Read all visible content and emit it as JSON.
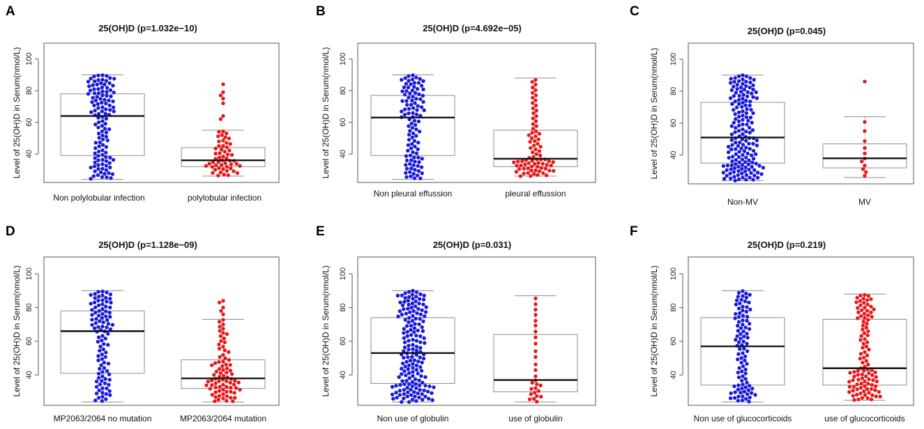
{
  "figure": {
    "ylabel": "Level of 25(OH)D in Serum(nmol/L)",
    "y_ticks": [
      40,
      60,
      80,
      100
    ]
  },
  "colors": {
    "group1": "#1a1adb",
    "group2": "#e81818",
    "box": "#8c8c8c",
    "median": "#111111",
    "axis": "#555555"
  },
  "chart_data": [
    {
      "type": "box-swarm",
      "panel_label": "A",
      "title": "25(OH)D (p=1.032e−10)",
      "ylabel": "Level of 25(OH)D in Serum(nmol/L)",
      "ylim": [
        22,
        110
      ],
      "categories": [
        "Non polylobular infection",
        "polylobular infection"
      ],
      "series": [
        {
          "name": "Non polylobular infection",
          "color": "#1a1adb",
          "n": 120,
          "box": {
            "whisker_low": 24,
            "q1": 39,
            "median": 64,
            "q3": 78,
            "whisker_high": 90
          }
        },
        {
          "name": "polylobular infection",
          "color": "#e81818",
          "n": 60,
          "box": {
            "whisker_low": 26,
            "q1": 32,
            "median": 36,
            "q3": 44,
            "whisker_high": 55
          },
          "outliers": [
            62,
            64,
            72,
            75,
            77,
            79,
            84
          ]
        }
      ]
    },
    {
      "type": "box-swarm",
      "panel_label": "B",
      "title": "25(OH)D (p=4.692e−05)",
      "ylabel": "Level of 25(OH)D in Serum(nmol/L)",
      "ylim": [
        22,
        110
      ],
      "categories": [
        "Non pleural effussion",
        "pleural  effussion"
      ],
      "series": [
        {
          "name": "Non pleural effussion",
          "color": "#1a1adb",
          "n": 105,
          "box": {
            "whisker_low": 24,
            "q1": 39,
            "median": 63,
            "q3": 77,
            "whisker_high": 90
          }
        },
        {
          "name": "pleural  effussion",
          "color": "#e81818",
          "n": 80,
          "box": {
            "whisker_low": 26,
            "q1": 32,
            "median": 37,
            "q3": 55,
            "whisker_high": 88
          }
        }
      ]
    },
    {
      "type": "box-swarm",
      "panel_label": "C",
      "title": "25(OH)D (p=0.045)",
      "ylabel": "Level of 25(OH)D in Serum(nmol/L)",
      "ylim": [
        22,
        110
      ],
      "categories": [
        "Non-MV",
        "MV"
      ],
      "series": [
        {
          "name": "Non-MV",
          "color": "#1a1adb",
          "n": 165,
          "box": {
            "whisker_low": 24,
            "q1": 35,
            "median": 51,
            "q3": 73,
            "whisker_high": 90
          }
        },
        {
          "name": "MV",
          "color": "#e81818",
          "n": 12,
          "box": {
            "whisker_low": 26,
            "q1": 32,
            "median": 38,
            "q3": 47,
            "whisker_high": 64
          },
          "outliers": [
            86
          ]
        }
      ]
    },
    {
      "type": "box-swarm",
      "panel_label": "D",
      "title": "25(OH)D (p=1.128e−09)",
      "ylabel": "Level of 25(OH)D in Serum(nmol/L)",
      "ylim": [
        22,
        110
      ],
      "categories": [
        "MP2063/2064 no mutation",
        "MP2063/2064 mutation"
      ],
      "series": [
        {
          "name": "MP2063/2064 no mutation",
          "color": "#1a1adb",
          "n": 100,
          "box": {
            "whisker_low": 24,
            "q1": 41,
            "median": 66,
            "q3": 78,
            "whisker_high": 90
          }
        },
        {
          "name": "MP2063/2064 mutation",
          "color": "#e81818",
          "n": 85,
          "box": {
            "whisker_low": 24,
            "q1": 32,
            "median": 38,
            "q3": 49,
            "whisker_high": 73
          },
          "outliers": [
            76,
            78,
            80,
            83,
            84
          ]
        }
      ]
    },
    {
      "type": "box-swarm",
      "panel_label": "E",
      "title": "25(OH)D (p=0.031)",
      "ylabel": "Level of 25(OH)D in Serum(nmol/L)",
      "ylim": [
        22,
        110
      ],
      "categories": [
        "Non use of globulin",
        "use of globulin"
      ],
      "series": [
        {
          "name": "Non use of globulin",
          "color": "#1a1adb",
          "n": 170,
          "box": {
            "whisker_low": 24,
            "q1": 35,
            "median": 53,
            "q3": 74,
            "whisker_high": 90
          }
        },
        {
          "name": "use of globulin",
          "color": "#e81818",
          "n": 28,
          "box": {
            "whisker_low": 24,
            "q1": 30,
            "median": 37,
            "q3": 64,
            "whisker_high": 87
          }
        }
      ]
    },
    {
      "type": "box-swarm",
      "panel_label": "F",
      "title": "25(OH)D (p=0.219)",
      "ylabel": "Level of 25(OH)D in Serum(nmol/L)",
      "ylim": [
        22,
        110
      ],
      "categories": [
        "Non use of glucocorticoids",
        "use of glucocorticoids"
      ],
      "series": [
        {
          "name": "Non use of glucocorticoids",
          "color": "#1a1adb",
          "n": 95,
          "box": {
            "whisker_low": 24,
            "q1": 34,
            "median": 57,
            "q3": 74,
            "whisker_high": 90
          }
        },
        {
          "name": "use of glucocorticoids",
          "color": "#e81818",
          "n": 105,
          "box": {
            "whisker_low": 25,
            "q1": 34,
            "median": 44,
            "q3": 73,
            "whisker_high": 88
          }
        }
      ]
    }
  ]
}
